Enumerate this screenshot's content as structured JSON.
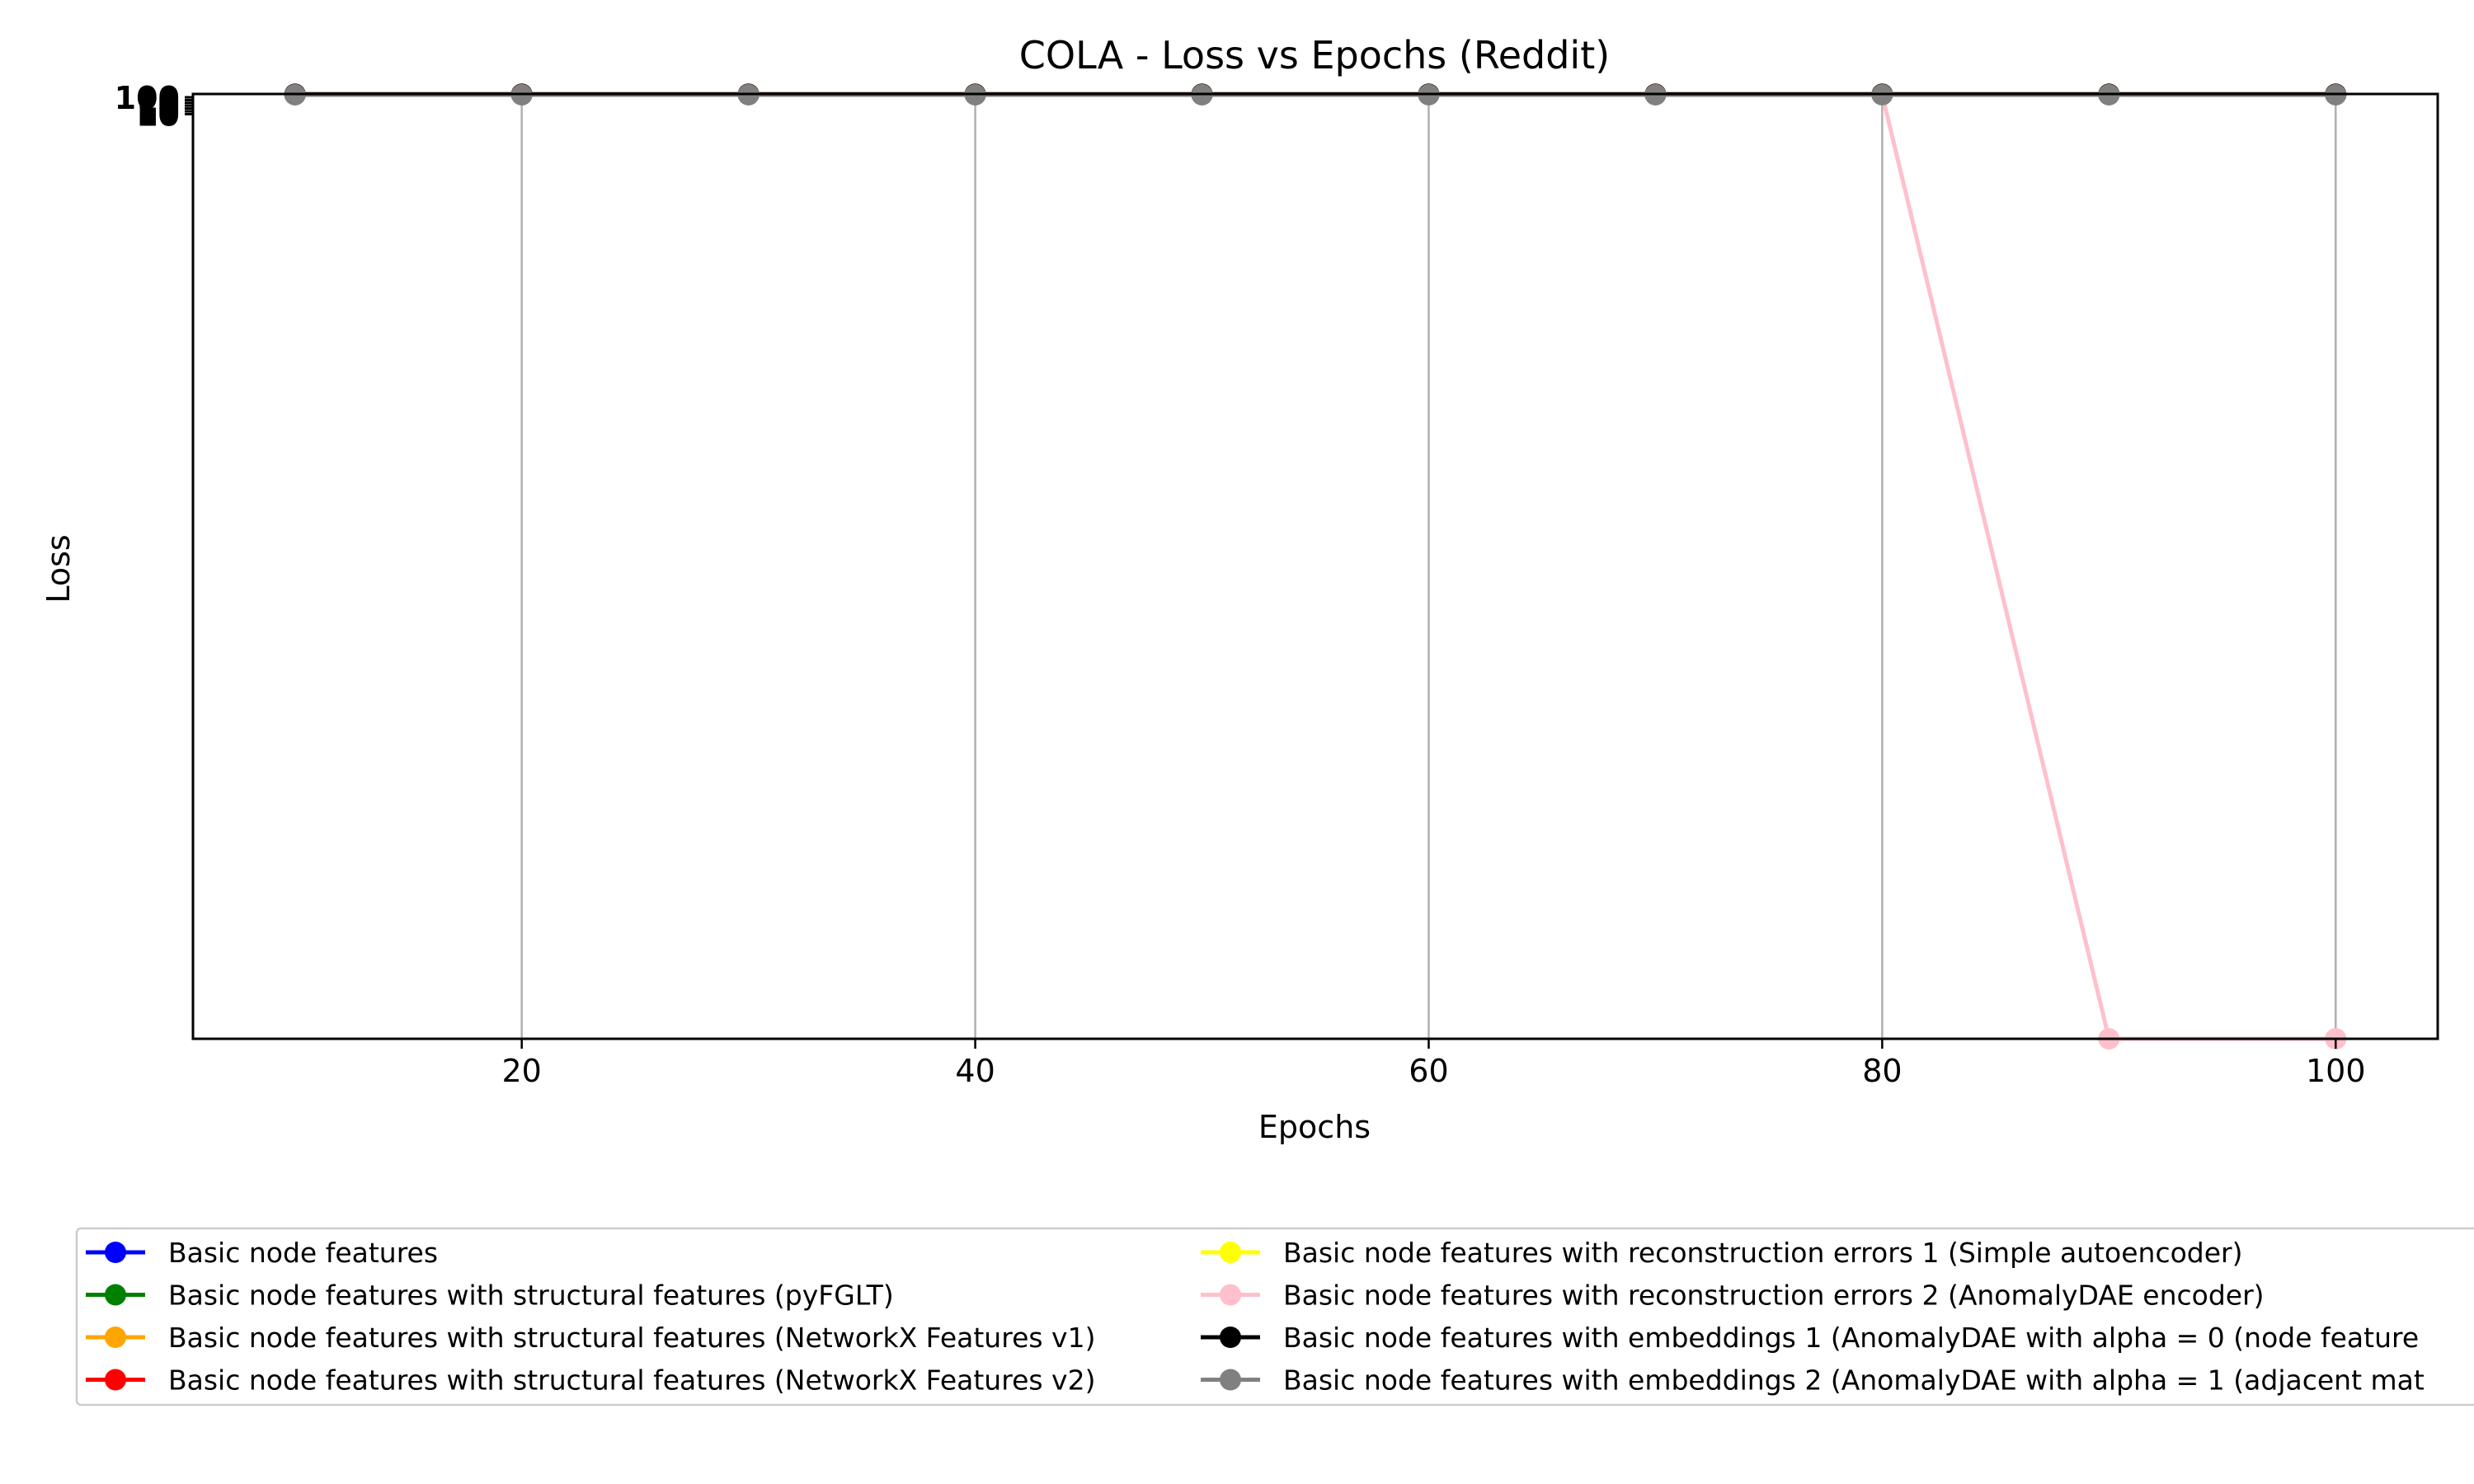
{
  "chart_data": {
    "type": "line",
    "title": "COLA - Loss vs Epochs (Reddit)",
    "xlabel": "Epochs",
    "ylabel": "Loss",
    "x": [
      10,
      20,
      30,
      40,
      50,
      60,
      70,
      80,
      90,
      100
    ],
    "xlim": [
      5.5,
      104.5
    ],
    "xticks": [
      20,
      40,
      60,
      80,
      100
    ],
    "ytick_labels": [
      "100",
      "10",
      "10",
      "10",
      "10",
      "10",
      "10"
    ],
    "yscale": "log",
    "grid": "x",
    "legend_position": "bottom",
    "series": [
      {
        "name": "Basic node features",
        "color": "#0000ff",
        "values": [
          1.06,
          1.06,
          1.06,
          1.06,
          1.06,
          1.06,
          1.06,
          1.06,
          1.06,
          1.06
        ]
      },
      {
        "name": "Basic node features with structural features (pyFGLT)",
        "color": "#008000",
        "values": [
          1.04,
          1.04,
          1.04,
          1.04,
          1.04,
          1.04,
          1.04,
          1.04,
          1.04,
          1.04
        ]
      },
      {
        "name": "Basic node features with structural features (NetworkX Features v1)",
        "color": "#ffa500",
        "values": [
          1.1,
          1.1,
          1.1,
          1.1,
          1.1,
          1.1,
          1.1,
          1.1,
          1.1,
          1.1
        ]
      },
      {
        "name": "Basic node features with structural features (NetworkX Features v2)",
        "color": "#ff0000",
        "values": [
          1.15,
          1.15,
          1.15,
          1.15,
          1.15,
          1.15,
          1.15,
          1.15,
          1.15,
          1.15
        ]
      },
      {
        "name": "Basic node features with reconstruction errors 1 (Simple autoencoder)",
        "color": "#ffff00",
        "values": [
          1.08,
          1.08,
          1.08,
          1.08,
          1.08,
          1.08,
          1.08,
          1.08,
          1.08,
          1.08
        ]
      },
      {
        "name": "Basic node features with reconstruction errors 2 (AnomalyDAE encoder)",
        "color": "#ffc0cb",
        "values": [
          1.02,
          1.02,
          1.02,
          1.02,
          1.02,
          1.02,
          1.02,
          1.0,
          1e-100,
          1e-100
        ]
      },
      {
        "name": "Basic node features with embeddings 1 (AnomalyDAE with alpha = 0 (node feature",
        "color": "#000000",
        "values": [
          1.12,
          1.12,
          1.12,
          1.12,
          1.12,
          1.12,
          1.12,
          1.12,
          1.12,
          1.12
        ]
      },
      {
        "name": "Basic node features with embeddings 2 (AnomalyDAE with alpha = 1 (adjacent mat",
        "color": "#808080",
        "values": [
          1.0,
          1.0,
          1.0,
          1.0,
          1.0,
          1.0,
          1.0,
          1.0,
          1.0,
          1.0
        ]
      }
    ]
  }
}
